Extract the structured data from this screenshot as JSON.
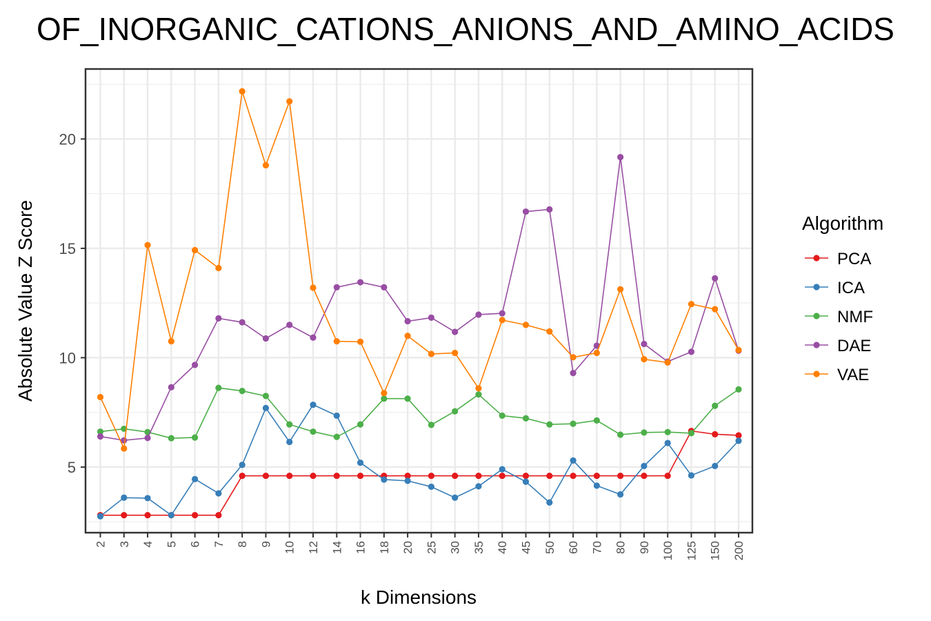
{
  "chart_data": {
    "type": "line",
    "title": "OF_INORGANIC_CATIONS_ANIONS_AND_AMINO_ACIDS",
    "xlabel": "k Dimensions",
    "ylabel": "Absolute Value Z Score",
    "categories": [
      "2",
      "3",
      "4",
      "5",
      "6",
      "7",
      "8",
      "9",
      "10",
      "12",
      "14",
      "16",
      "18",
      "20",
      "25",
      "30",
      "35",
      "40",
      "45",
      "50",
      "60",
      "70",
      "80",
      "90",
      "100",
      "125",
      "150",
      "200"
    ],
    "ylim": [
      2.0,
      23.2
    ],
    "yticks": [
      5,
      10,
      15,
      20
    ],
    "grid": true,
    "legend": {
      "title": "Algorithm",
      "placement": "right"
    },
    "series": [
      {
        "name": "PCA",
        "color": "#e41a1c",
        "values": [
          2.8,
          2.8,
          2.8,
          2.8,
          2.8,
          2.8,
          4.6,
          4.6,
          4.6,
          4.6,
          4.6,
          4.6,
          4.6,
          4.6,
          4.6,
          4.6,
          4.6,
          4.6,
          4.6,
          4.6,
          4.6,
          4.6,
          4.6,
          4.6,
          4.6,
          6.65,
          6.5,
          6.45
        ]
      },
      {
        "name": "ICA",
        "color": "#377eb8",
        "values": [
          2.75,
          3.6,
          3.58,
          2.8,
          4.45,
          3.8,
          5.1,
          7.7,
          6.15,
          7.85,
          7.35,
          5.2,
          4.43,
          4.37,
          4.1,
          3.6,
          4.12,
          4.9,
          4.33,
          3.38,
          5.3,
          4.15,
          3.75,
          5.05,
          6.1,
          4.62,
          5.05,
          6.2
        ]
      },
      {
        "name": "NMF",
        "color": "#4daf4a",
        "values": [
          6.62,
          6.75,
          6.6,
          6.32,
          6.35,
          8.62,
          8.48,
          8.25,
          6.95,
          6.62,
          6.38,
          6.95,
          8.13,
          8.13,
          6.93,
          7.55,
          8.32,
          7.35,
          7.23,
          6.95,
          6.98,
          7.13,
          6.48,
          6.58,
          6.6,
          6.55,
          7.8,
          8.55
        ]
      },
      {
        "name": "DAE",
        "color": "#984ea3",
        "values": [
          6.4,
          6.22,
          6.33,
          8.65,
          9.67,
          11.8,
          11.62,
          10.88,
          11.5,
          10.92,
          13.22,
          13.45,
          13.22,
          11.67,
          11.83,
          11.18,
          11.97,
          12.03,
          16.68,
          16.78,
          9.3,
          10.55,
          19.17,
          10.63,
          9.82,
          10.27,
          13.63,
          10.32
        ]
      },
      {
        "name": "VAE",
        "color": "#ff7f00",
        "values": [
          8.2,
          5.85,
          15.15,
          10.75,
          14.92,
          14.1,
          22.18,
          18.8,
          21.72,
          13.2,
          10.75,
          10.73,
          8.38,
          11.0,
          10.17,
          10.22,
          8.6,
          11.72,
          11.5,
          11.2,
          10.02,
          10.22,
          13.13,
          9.93,
          9.78,
          12.45,
          12.22,
          10.35
        ]
      }
    ]
  }
}
